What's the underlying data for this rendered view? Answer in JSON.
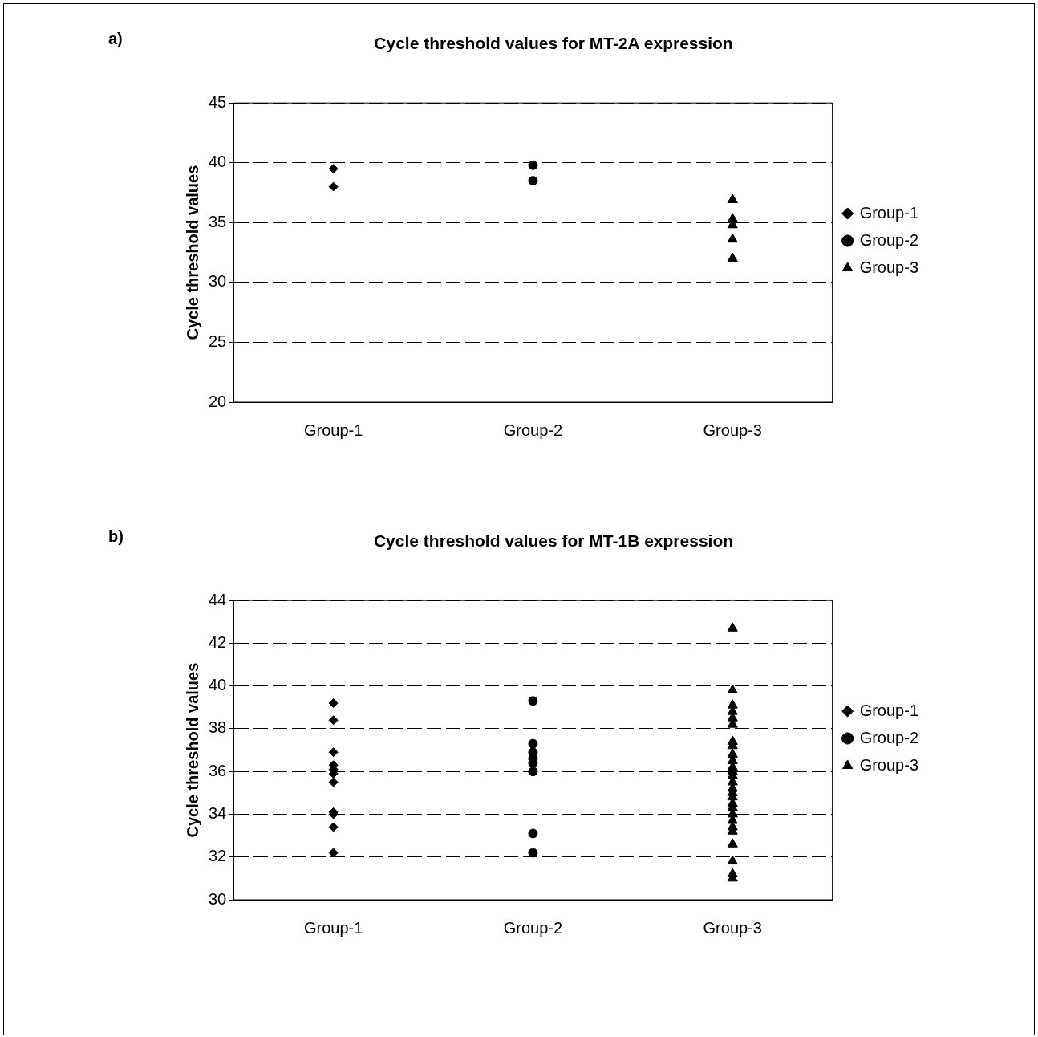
{
  "chart_data": [
    {
      "type": "scatter",
      "title": "Cycle threshold values for MT-2A expression",
      "ylabel": "Cycle threshold values",
      "annotations": [
        "a)"
      ],
      "categories": [
        "Group-1",
        "Group-2",
        "Group-3"
      ],
      "ylim": [
        20,
        45
      ],
      "yticks": [
        20,
        25,
        30,
        35,
        40,
        45
      ],
      "grid": "y",
      "legend": "right",
      "series": [
        {
          "name": "Group-1",
          "color": "#000000",
          "marker": "diamond",
          "x": [
            "Group-1",
            "Group-1"
          ],
          "values": [
            39.5,
            38.0
          ]
        },
        {
          "name": "Group-2",
          "color": "#000000",
          "marker": "circle",
          "x": [
            "Group-2",
            "Group-2"
          ],
          "values": [
            39.8,
            38.5
          ]
        },
        {
          "name": "Group-3",
          "color": "#000000",
          "marker": "triangle",
          "x": [
            "Group-3",
            "Group-3",
            "Group-3",
            "Group-3",
            "Group-3"
          ],
          "values": [
            36.9,
            35.3,
            34.8,
            33.6,
            32.0
          ]
        }
      ]
    },
    {
      "type": "scatter",
      "title": "Cycle threshold values for MT-1B expression",
      "ylabel": "Cycle threshold values",
      "annotations": [
        "b)"
      ],
      "categories": [
        "Group-1",
        "Group-2",
        "Group-3"
      ],
      "ylim": [
        30,
        44
      ],
      "yticks": [
        30,
        32,
        34,
        36,
        38,
        40,
        42,
        44
      ],
      "grid": "y",
      "legend": "right",
      "series": [
        {
          "name": "Group-1",
          "color": "#000000",
          "marker": "diamond",
          "x": [
            "Group-1",
            "Group-1",
            "Group-1",
            "Group-1",
            "Group-1",
            "Group-1",
            "Group-1",
            "Group-1",
            "Group-1",
            "Group-1",
            "Group-1"
          ],
          "values": [
            39.2,
            38.4,
            36.9,
            36.3,
            36.1,
            35.9,
            35.5,
            34.1,
            34.0,
            33.4,
            32.2
          ]
        },
        {
          "name": "Group-2",
          "color": "#000000",
          "marker": "circle",
          "x": [
            "Group-2",
            "Group-2",
            "Group-2",
            "Group-2",
            "Group-2",
            "Group-2",
            "Group-2",
            "Group-2"
          ],
          "values": [
            39.3,
            37.3,
            36.9,
            36.6,
            36.4,
            36.0,
            33.1,
            32.2
          ]
        },
        {
          "name": "Group-3",
          "color": "#000000",
          "marker": "triangle",
          "x": [
            "Group-3",
            "Group-3",
            "Group-3",
            "Group-3",
            "Group-3",
            "Group-3",
            "Group-3",
            "Group-3",
            "Group-3",
            "Group-3",
            "Group-3",
            "Group-3",
            "Group-3",
            "Group-3",
            "Group-3",
            "Group-3",
            "Group-3",
            "Group-3",
            "Group-3",
            "Group-3",
            "Group-3",
            "Group-3",
            "Group-3",
            "Group-3",
            "Group-3",
            "Group-3",
            "Group-3"
          ],
          "values": [
            42.7,
            39.8,
            39.1,
            38.8,
            38.5,
            38.2,
            37.4,
            37.2,
            36.8,
            36.5,
            36.2,
            36.0,
            35.8,
            35.5,
            35.2,
            35.0,
            34.8,
            34.5,
            34.3,
            34.0,
            33.7,
            33.4,
            33.2,
            32.6,
            31.8,
            31.2,
            31.0
          ]
        }
      ]
    }
  ]
}
